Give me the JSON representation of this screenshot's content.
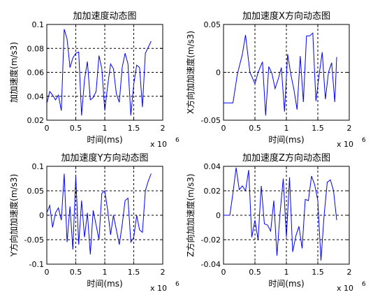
{
  "chart_data": [
    {
      "type": "line",
      "title": "加加速度动态图",
      "xlabel": "时间(ms)",
      "ylabel": "加加速度(m/s3)",
      "x_multiplier": "x 10",
      "x_multiplier_exp": "6",
      "xlim": [
        0,
        2
      ],
      "ylim": [
        0.02,
        0.1
      ],
      "xticks": [
        "0",
        "0.5",
        "1",
        "1.5",
        "2"
      ],
      "yticks": [
        "0.02",
        "0.04",
        "0.06",
        "0.08",
        "0.1"
      ],
      "grid_lines_x": [
        0.5,
        1,
        1.5
      ],
      "grid_lines_y": [
        0.04,
        0.06,
        0.08
      ],
      "line_color": "#0000ff",
      "series": [
        {
          "x": [
            0.0,
            0.05,
            0.1,
            0.15,
            0.2,
            0.25,
            0.3,
            0.35,
            0.4,
            0.45,
            0.5,
            0.55,
            0.6,
            0.65,
            0.7,
            0.75,
            0.8,
            0.85,
            0.9,
            0.95,
            1.0,
            1.05,
            1.1,
            1.15,
            1.2,
            1.25,
            1.3,
            1.35,
            1.4,
            1.45,
            1.5,
            1.55,
            1.6,
            1.65,
            1.7,
            1.75,
            1.8
          ],
          "y": [
            0.034,
            0.044,
            0.041,
            0.037,
            0.041,
            0.028,
            0.096,
            0.088,
            0.064,
            0.072,
            0.076,
            0.077,
            0.024,
            0.054,
            0.069,
            0.037,
            0.039,
            0.044,
            0.074,
            0.063,
            0.028,
            0.049,
            0.067,
            0.063,
            0.042,
            0.035,
            0.064,
            0.076,
            0.067,
            0.024,
            0.05,
            0.066,
            0.064,
            0.031,
            0.076,
            0.081,
            0.086
          ]
        }
      ]
    },
    {
      "type": "line",
      "title": "加加速度X方向动态图",
      "xlabel": "时间(ms)",
      "ylabel": "X方向加加速度(m/s3)",
      "x_multiplier": "x 10",
      "x_multiplier_exp": "6",
      "xlim": [
        0,
        2
      ],
      "ylim": [
        -0.05,
        0.05
      ],
      "xticks": [
        "0",
        "0.5",
        "1",
        "1.5",
        "2"
      ],
      "yticks": [
        "-0.05",
        "0",
        "0.05"
      ],
      "grid_lines_x": [
        0.5,
        1,
        1.5
      ],
      "grid_lines_y": [
        0
      ],
      "line_color": "#0000ff",
      "series": [
        {
          "x": [
            0.0,
            0.15,
            0.22,
            0.3,
            0.35,
            0.42,
            0.5,
            0.55,
            0.62,
            0.67,
            0.72,
            0.77,
            0.82,
            0.87,
            0.92,
            0.97,
            1.02,
            1.07,
            1.12,
            1.17,
            1.22,
            1.27,
            1.32,
            1.37,
            1.42,
            1.47,
            1.52,
            1.57,
            1.62,
            1.67,
            1.72,
            1.77,
            1.8
          ],
          "y": [
            -0.032,
            -0.032,
            -0.002,
            0.019,
            0.039,
            0.0,
            -0.012,
            0.0,
            0.011,
            -0.045,
            0.006,
            -0.001,
            -0.017,
            -0.007,
            0.005,
            -0.041,
            0.019,
            -0.002,
            -0.018,
            -0.039,
            0.017,
            -0.031,
            0.038,
            0.038,
            0.041,
            -0.03,
            -0.003,
            0.021,
            -0.028,
            0.0,
            0.01,
            -0.031,
            0.016
          ]
        }
      ]
    },
    {
      "type": "line",
      "title": "加加速度Y方向动态图",
      "xlabel": "时间(ms)",
      "ylabel": "Y方向加加速度(m/s3)",
      "x_multiplier": "x 10",
      "x_multiplier_exp": "6",
      "xlim": [
        0,
        2
      ],
      "ylim": [
        -0.1,
        0.1
      ],
      "xticks": [
        "0",
        "0.5",
        "1",
        "1.5",
        "2"
      ],
      "yticks": [
        "-0.1",
        "-0.05",
        "0",
        "0.05",
        "0.1"
      ],
      "grid_lines_x": [
        0.5,
        1,
        1.5
      ],
      "grid_lines_y": [
        -0.05,
        0,
        0.05
      ],
      "line_color": "#0000ff",
      "series": [
        {
          "x": [
            0.0,
            0.05,
            0.1,
            0.15,
            0.2,
            0.25,
            0.3,
            0.35,
            0.4,
            0.45,
            0.5,
            0.55,
            0.6,
            0.65,
            0.7,
            0.75,
            0.8,
            0.85,
            0.9,
            0.95,
            1.0,
            1.05,
            1.1,
            1.15,
            1.2,
            1.25,
            1.3,
            1.35,
            1.4,
            1.45,
            1.5,
            1.55,
            1.6,
            1.65,
            1.7,
            1.75,
            1.8
          ],
          "y": [
            0.005,
            0.02,
            -0.025,
            0.005,
            0.015,
            -0.01,
            0.085,
            -0.055,
            0.018,
            -0.07,
            0.08,
            -0.06,
            0.03,
            -0.045,
            0.005,
            -0.08,
            0.01,
            -0.02,
            -0.05,
            0.045,
            0.05,
            0.01,
            -0.04,
            0.0,
            -0.03,
            -0.06,
            -0.02,
            0.03,
            0.035,
            -0.055,
            -0.045,
            0.0,
            -0.03,
            -0.035,
            0.05,
            0.07,
            0.085
          ]
        }
      ]
    },
    {
      "type": "line",
      "title": "加加速度Z方向动态图",
      "xlabel": "时间(ms)",
      "ylabel": "Z方向加加速度(m/s3)",
      "x_multiplier": "x 10",
      "x_multiplier_exp": "6",
      "xlim": [
        0,
        2
      ],
      "ylim": [
        -0.04,
        0.04
      ],
      "xticks": [
        "0",
        "0.5",
        "1",
        "1.5",
        "2"
      ],
      "yticks": [
        "-0.04",
        "-0.02",
        "0",
        "0.02",
        "0.04"
      ],
      "grid_lines_x": [
        0.5,
        1,
        1.5
      ],
      "grid_lines_y": [
        -0.02,
        0,
        0.02
      ],
      "line_color": "#0000ff",
      "series": [
        {
          "x": [
            0.0,
            0.1,
            0.15,
            0.2,
            0.25,
            0.3,
            0.35,
            0.4,
            0.45,
            0.5,
            0.55,
            0.6,
            0.65,
            0.7,
            0.75,
            0.8,
            0.85,
            0.9,
            0.95,
            1.0,
            1.05,
            1.1,
            1.15,
            1.2,
            1.25,
            1.3,
            1.35,
            1.4,
            1.45,
            1.5,
            1.55,
            1.6,
            1.65,
            1.7,
            1.75,
            1.8
          ],
          "y": [
            0.0,
            0.0,
            0.018,
            0.039,
            0.021,
            0.024,
            0.02,
            0.037,
            -0.018,
            -0.004,
            -0.02,
            0.024,
            -0.007,
            -0.008,
            -0.013,
            0.012,
            -0.033,
            0.002,
            0.03,
            -0.018,
            0.031,
            -0.03,
            -0.017,
            -0.009,
            -0.027,
            0.013,
            0.012,
            0.032,
            0.025,
            0.012,
            -0.037,
            0.0,
            0.027,
            0.029,
            0.02,
            -0.004
          ]
        }
      ]
    }
  ]
}
